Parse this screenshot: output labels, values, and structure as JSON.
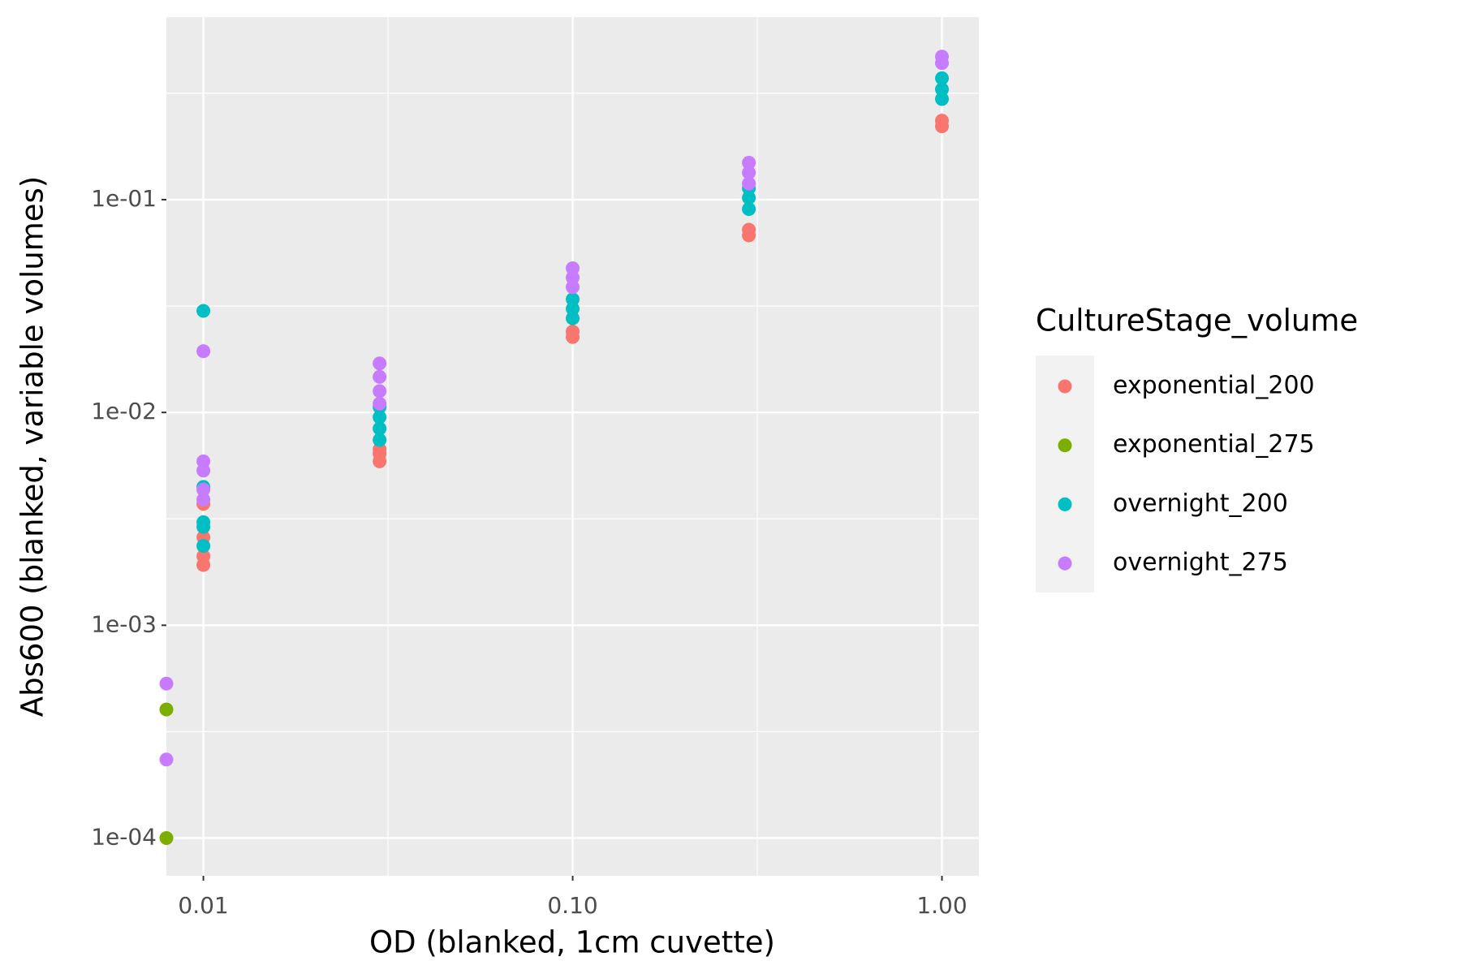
{
  "chart_data": {
    "type": "scatter",
    "x_label": "OD (blanked, 1cm cuvette)",
    "y_label": "Abs600 (blanked, variable volumes)",
    "legend_title": "CultureStage_volume",
    "xlog": true,
    "ylog": true,
    "grid": true,
    "legend_position": "right",
    "xlim": [
      0.00794,
      1.259
    ],
    "ylim": [
      6.65e-05,
      0.721
    ],
    "xticks": [
      {
        "value": 0.01,
        "label": "0.01"
      },
      {
        "value": 0.1,
        "label": "0.10"
      },
      {
        "value": 1,
        "label": "1.00"
      }
    ],
    "yticks": [
      {
        "value": 0.0001,
        "label": "1e-04"
      },
      {
        "value": 0.001,
        "label": "1e-03"
      },
      {
        "value": 0.01,
        "label": "1e-02"
      },
      {
        "value": 0.1,
        "label": "1e-01"
      }
    ],
    "series": [
      {
        "name": "exponential_200",
        "color": "#F8766D",
        "x": [
          0.01,
          0.01,
          0.01,
          0.01,
          0.03,
          0.03,
          0.03,
          0.1,
          0.1,
          0.3,
          0.3,
          1,
          1
        ],
        "values": [
          0.00192,
          0.00211,
          0.00259,
          0.00372,
          0.00589,
          0.0064,
          0.00671,
          0.0226,
          0.024,
          0.0679,
          0.0722,
          0.221,
          0.235
        ]
      },
      {
        "name": "exponential_275",
        "color": "#7CAE00",
        "x": [
          0.00794,
          0.00794
        ],
        "values": [
          0.000402,
          0.0001
        ]
      },
      {
        "name": "overnight_200",
        "color": "#00BFC4",
        "x": [
          0.01,
          0.01,
          0.01,
          0.01,
          0.01,
          0.03,
          0.03,
          0.03,
          0.03,
          0.1,
          0.1,
          0.1,
          0.3,
          0.3,
          0.3,
          1,
          1,
          1
        ],
        "values": [
          0.03,
          0.00236,
          0.0029,
          0.00305,
          0.00447,
          0.00743,
          0.0084,
          0.0095,
          0.0106,
          0.0277,
          0.0307,
          0.034,
          0.0903,
          0.102,
          0.113,
          0.297,
          0.33,
          0.372
        ]
      },
      {
        "name": "overnight_275",
        "color": "#C77CFF",
        "x": [
          0.00794,
          0.00794,
          0.01,
          0.01,
          0.01,
          0.01,
          0.01,
          0.03,
          0.03,
          0.03,
          0.03,
          0.1,
          0.1,
          0.1,
          0.3,
          0.3,
          0.3,
          1,
          1
        ],
        "values": [
          0.000532,
          0.000234,
          0.0194,
          0.00589,
          0.00533,
          0.00434,
          0.0039,
          0.017,
          0.0147,
          0.0126,
          0.011,
          0.0388,
          0.043,
          0.0476,
          0.119,
          0.134,
          0.149,
          0.438,
          0.47
        ]
      }
    ]
  }
}
